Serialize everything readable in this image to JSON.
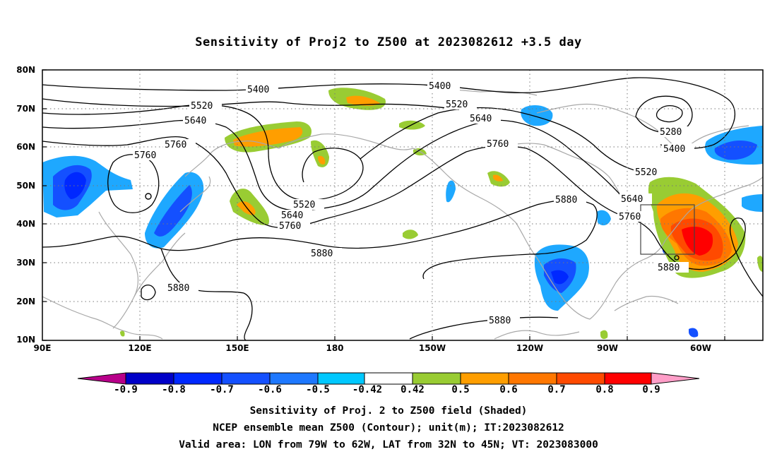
{
  "title": "Sensitivity of Proj2 to Z500 at 2023082612 +3.5 day",
  "axes": {
    "lat_labels": [
      "80N",
      "70N",
      "60N",
      "50N",
      "40N",
      "30N",
      "20N",
      "10N"
    ],
    "lon_labels": [
      "90E",
      "120E",
      "150E",
      "180",
      "150W",
      "120W",
      "90W",
      "60W"
    ],
    "lat_range": [
      10,
      80
    ],
    "lon_range_east": [
      90,
      312
    ]
  },
  "contours": {
    "levels": [
      "5280",
      "5400",
      "5520",
      "5640",
      "5760",
      "5880"
    ],
    "unit": "m"
  },
  "colorbar": {
    "labels": [
      "-0.9",
      "-0.8",
      "-0.7",
      "-0.6",
      "-0.5",
      "-0.42",
      "0.42",
      "0.5",
      "0.6",
      "0.7",
      "0.8",
      "0.9"
    ],
    "colors": [
      "#b8008a",
      "#0000c8",
      "#0028ff",
      "#1450ff",
      "#1e78ff",
      "#1ea8ff",
      "#00c8ff",
      "#ffffff",
      "#99cc33",
      "#ff9e00",
      "#ff7700",
      "#ff4a00",
      "#ff0000",
      "#ff9ec8"
    ]
  },
  "footer": {
    "line1": "Sensitivity of Proj. 2 to Z500 field (Shaded)",
    "line2": "NCEP ensemble mean Z500 (Contour); unit(m); IT:2023082612",
    "line3": "Valid area: LON from 79W to 62W, LAT from 32N to 45N; VT: 2023083000"
  },
  "valid_area": {
    "lon": [
      "79W",
      "62W"
    ],
    "lat": [
      "32N",
      "45N"
    ]
  }
}
